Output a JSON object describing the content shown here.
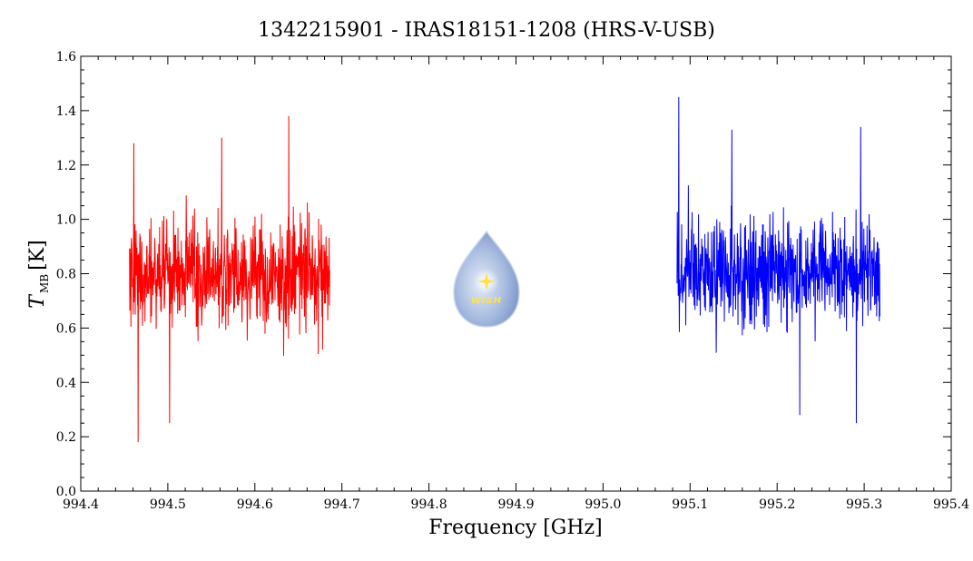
{
  "chart_data": {
    "type": "line",
    "title": "1342215901 - IRAS18151-1208 (HRS-V-USB)",
    "xlabel": "Frequency [GHz]",
    "ylabel": {
      "main": "T",
      "sub": "MB",
      "unit": "[K]"
    },
    "xlim": [
      994.4,
      995.4
    ],
    "ylim": [
      0.0,
      1.6
    ],
    "x_ticks": [
      "994.4",
      "994.5",
      "994.6",
      "994.7",
      "994.8",
      "994.9",
      "995.0",
      "995.1",
      "995.2",
      "995.3",
      "995.4"
    ],
    "y_ticks": [
      "0.0",
      "0.2",
      "0.4",
      "0.6",
      "0.8",
      "1.0",
      "1.2",
      "1.4",
      "1.6"
    ],
    "grid": false,
    "series": [
      {
        "color": "#ff0000",
        "x_range": [
          994.456,
          994.686
        ],
        "mean": 0.8,
        "noise_sigma": 0.14,
        "points": 700,
        "spikes": [
          {
            "x": 994.466,
            "y": 0.18
          },
          {
            "x": 994.502,
            "y": 0.25
          },
          {
            "x": 994.639,
            "y": 1.38
          },
          {
            "x": 994.562,
            "y": 1.3
          },
          {
            "x": 994.461,
            "y": 1.28
          }
        ]
      },
      {
        "color": "#0000ff",
        "x_range": [
          995.085,
          995.318
        ],
        "mean": 0.8,
        "noise_sigma": 0.14,
        "points": 700,
        "spikes": [
          {
            "x": 995.087,
            "y": 1.45
          },
          {
            "x": 995.226,
            "y": 0.28
          },
          {
            "x": 995.291,
            "y": 0.25
          },
          {
            "x": 995.296,
            "y": 1.34
          },
          {
            "x": 995.148,
            "y": 1.33
          }
        ]
      }
    ],
    "logo": {
      "text": "WISH"
    }
  }
}
